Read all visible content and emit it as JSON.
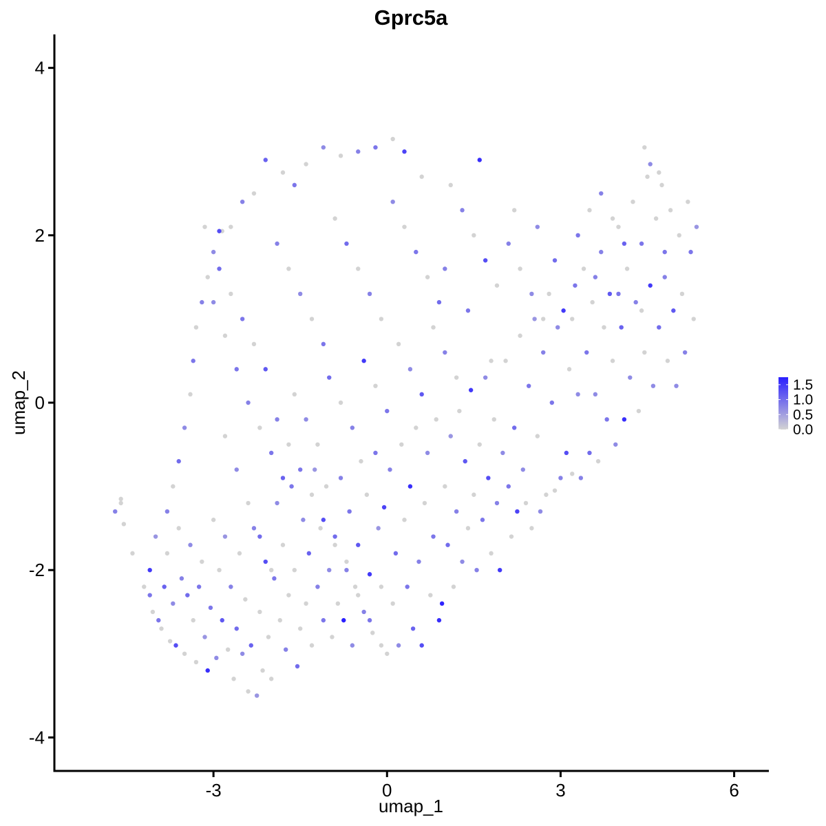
{
  "chart_data": {
    "type": "scatter",
    "title": "Gprc5a",
    "xlabel": "umap_1",
    "ylabel": "umap_2",
    "xlim": [
      -5.75,
      6.6
    ],
    "ylim": [
      -4.4,
      4.4
    ],
    "x_ticks": [
      {
        "value": -3,
        "label": "-3"
      },
      {
        "value": 0,
        "label": "0"
      },
      {
        "value": 3,
        "label": "3"
      },
      {
        "value": 6,
        "label": "6"
      }
    ],
    "y_ticks": [
      {
        "value": -4,
        "label": "-4"
      },
      {
        "value": -2,
        "label": "-2"
      },
      {
        "value": 0,
        "label": "0"
      },
      {
        "value": 2,
        "label": "2"
      },
      {
        "value": 4,
        "label": "4"
      }
    ],
    "grid": false,
    "legend": {
      "placement": "right",
      "type": "colorbar",
      "range": [
        0,
        1.75
      ],
      "ticks": [
        {
          "value": 0.0,
          "label": "0.0"
        },
        {
          "value": 0.5,
          "label": "0.5"
        },
        {
          "value": 1.0,
          "label": "1.0"
        },
        {
          "value": 1.5,
          "label": "1.5"
        }
      ],
      "low_color": "#d3d3d3",
      "high_color": "#2a1fff"
    },
    "colors": {
      "low": "#d3d3d3",
      "high": "#2a1fff",
      "axis": "#000000"
    },
    "points": [
      [
        -4.7,
        -1.3,
        0.8
      ],
      [
        -4.6,
        -1.2,
        0.0
      ],
      [
        -4.55,
        -1.45,
        0.0
      ],
      [
        -4.6,
        -1.15,
        0.0
      ],
      [
        -4.4,
        -1.8,
        0.0
      ],
      [
        -4.2,
        -2.2,
        0.0
      ],
      [
        -4.1,
        -2.3,
        0.9
      ],
      [
        -4.05,
        -2.5,
        0.0
      ],
      [
        -4.1,
        -2.0,
        1.5
      ],
      [
        -4.0,
        -1.6,
        0.6
      ],
      [
        -3.95,
        -2.6,
        0.9
      ],
      [
        -3.9,
        -2.7,
        0.0
      ],
      [
        -3.85,
        -2.2,
        1.1
      ],
      [
        -3.8,
        -1.8,
        0.0
      ],
      [
        -3.75,
        -2.85,
        0.0
      ],
      [
        -3.7,
        -2.4,
        0.7
      ],
      [
        -3.65,
        -2.9,
        1.3
      ],
      [
        -3.6,
        -1.5,
        0.0
      ],
      [
        -3.55,
        -2.1,
        0.8
      ],
      [
        -3.5,
        -3.0,
        0.0
      ],
      [
        -3.45,
        -2.3,
        1.0
      ],
      [
        -3.4,
        -1.7,
        0.7
      ],
      [
        -3.35,
        -2.6,
        0.0
      ],
      [
        -3.3,
        -3.1,
        0.0
      ],
      [
        -3.25,
        -2.2,
        0.9
      ],
      [
        -3.2,
        -1.9,
        0.0
      ],
      [
        -3.15,
        -2.8,
        0.6
      ],
      [
        -3.1,
        -3.2,
        1.6
      ],
      [
        -3.05,
        -2.45,
        0.9
      ],
      [
        -3.0,
        -1.4,
        0.0
      ],
      [
        -2.95,
        -3.05,
        0.7
      ],
      [
        -2.9,
        -2.0,
        0.0
      ],
      [
        -2.85,
        -2.6,
        1.2
      ],
      [
        -2.8,
        -1.6,
        0.6
      ],
      [
        -2.75,
        -2.95,
        0.0
      ],
      [
        -2.7,
        -2.2,
        0.8
      ],
      [
        -2.65,
        -3.3,
        0.0
      ],
      [
        -2.6,
        -2.7,
        1.0
      ],
      [
        -2.55,
        -1.8,
        0.0
      ],
      [
        -2.5,
        -3.0,
        0.7
      ],
      [
        -2.45,
        -2.35,
        0.0
      ],
      [
        -2.4,
        -3.45,
        0.0
      ],
      [
        -2.35,
        -2.9,
        1.1
      ],
      [
        -2.3,
        -1.5,
        0.8
      ],
      [
        -2.25,
        -3.5,
        0.6
      ],
      [
        -2.2,
        -2.5,
        0.0
      ],
      [
        -2.15,
        -3.2,
        0.0
      ],
      [
        -2.1,
        -1.9,
        1.3
      ],
      [
        -2.05,
        -2.8,
        0.0
      ],
      [
        -2.0,
        -3.3,
        0.0
      ],
      [
        -1.95,
        -2.1,
        0.9
      ],
      [
        -1.9,
        -1.2,
        0.7
      ],
      [
        -1.85,
        -2.6,
        0.0
      ],
      [
        -1.8,
        -1.7,
        0.0
      ],
      [
        -1.75,
        -2.95,
        0.8
      ],
      [
        -1.7,
        -2.3,
        0.0
      ],
      [
        -1.65,
        -1.0,
        0.9
      ],
      [
        -1.6,
        -2.0,
        0.0
      ],
      [
        -1.55,
        -3.15,
        1.0
      ],
      [
        -1.5,
        -2.7,
        0.0
      ],
      [
        -1.45,
        -1.4,
        0.7
      ],
      [
        -1.4,
        -2.4,
        0.0
      ],
      [
        -1.35,
        -1.8,
        1.1
      ],
      [
        -1.3,
        -2.9,
        0.0
      ],
      [
        -1.25,
        -0.8,
        0.6
      ],
      [
        -1.2,
        -2.2,
        0.8
      ],
      [
        -1.15,
        -1.5,
        0.0
      ],
      [
        -1.1,
        -2.6,
        0.9
      ],
      [
        -1.05,
        -1.0,
        0.0
      ],
      [
        -1.0,
        -2.0,
        0.7
      ],
      [
        -0.95,
        -2.8,
        0.0
      ],
      [
        -0.9,
        -1.6,
        1.0
      ],
      [
        -0.85,
        -2.4,
        0.0
      ],
      [
        -0.8,
        -0.9,
        0.8
      ],
      [
        -0.75,
        -2.6,
        1.8
      ],
      [
        -0.7,
        -1.9,
        0.0
      ],
      [
        -0.65,
        -1.3,
        0.9
      ],
      [
        -0.6,
        -2.9,
        0.7
      ],
      [
        -0.55,
        -2.2,
        0.0
      ],
      [
        -0.5,
        -1.7,
        1.2
      ],
      [
        -0.45,
        -0.7,
        0.0
      ],
      [
        -0.4,
        -2.5,
        0.8
      ],
      [
        -0.35,
        -1.1,
        0.0
      ],
      [
        -0.3,
        -2.05,
        1.5
      ],
      [
        -0.25,
        -2.75,
        0.0
      ],
      [
        -0.2,
        -0.6,
        0.9
      ],
      [
        -0.15,
        -1.5,
        0.6
      ],
      [
        -0.1,
        -2.2,
        0.0
      ],
      [
        -0.05,
        -1.25,
        1.4
      ],
      [
        0.0,
        -3.0,
        0.0
      ],
      [
        0.05,
        -0.8,
        0.8
      ],
      [
        0.1,
        -2.4,
        0.0
      ],
      [
        0.15,
        -1.8,
        1.0
      ],
      [
        0.2,
        -2.9,
        0.7
      ],
      [
        0.25,
        -0.5,
        0.0
      ],
      [
        0.3,
        -1.4,
        0.0
      ],
      [
        0.35,
        -2.2,
        0.9
      ],
      [
        0.4,
        -1.0,
        1.6
      ],
      [
        0.45,
        -2.7,
        1.1
      ],
      [
        0.5,
        -0.3,
        0.0
      ],
      [
        0.55,
        -1.9,
        0.8
      ],
      [
        0.6,
        -2.9,
        1.3
      ],
      [
        0.65,
        -1.2,
        0.0
      ],
      [
        0.7,
        -0.6,
        0.7
      ],
      [
        0.75,
        -2.3,
        0.0
      ],
      [
        0.8,
        -1.6,
        0.9
      ],
      [
        0.85,
        -0.2,
        0.0
      ],
      [
        0.9,
        -2.6,
        1.6
      ],
      [
        0.95,
        -2.4,
        1.7
      ],
      [
        1.0,
        -1.0,
        0.0
      ],
      [
        1.05,
        -1.7,
        1.0
      ],
      [
        1.1,
        -0.4,
        0.6
      ],
      [
        1.15,
        -2.2,
        0.0
      ],
      [
        1.2,
        -1.3,
        0.8
      ],
      [
        1.25,
        -0.1,
        0.0
      ],
      [
        1.3,
        -1.9,
        0.7
      ],
      [
        1.35,
        -0.7,
        1.2
      ],
      [
        1.4,
        -1.5,
        0.0
      ],
      [
        1.45,
        0.15,
        1.5
      ],
      [
        1.5,
        -1.1,
        0.0
      ],
      [
        1.55,
        -2.0,
        0.8
      ],
      [
        1.6,
        -0.5,
        0.0
      ],
      [
        1.65,
        -1.4,
        0.9
      ],
      [
        1.7,
        0.3,
        0.7
      ],
      [
        1.75,
        -0.9,
        1.3
      ],
      [
        1.8,
        -1.8,
        0.0
      ],
      [
        1.85,
        -0.2,
        0.0
      ],
      [
        1.9,
        -1.2,
        0.8
      ],
      [
        1.95,
        -2.0,
        1.5
      ],
      [
        2.0,
        -0.6,
        0.7
      ],
      [
        2.05,
        0.5,
        0.0
      ],
      [
        2.1,
        -1.0,
        0.9
      ],
      [
        2.15,
        -1.6,
        0.0
      ],
      [
        2.2,
        -0.3,
        1.0
      ],
      [
        2.25,
        -1.3,
        1.4
      ],
      [
        2.3,
        0.8,
        0.0
      ],
      [
        2.35,
        -0.8,
        0.7
      ],
      [
        2.4,
        -1.2,
        0.0
      ],
      [
        2.45,
        0.2,
        0.9
      ],
      [
        2.5,
        -1.5,
        0.0
      ],
      [
        2.55,
        1.0,
        0.6
      ],
      [
        2.6,
        -0.4,
        0.0
      ],
      [
        2.65,
        -1.3,
        0.7
      ],
      [
        2.7,
        0.6,
        0.8
      ],
      [
        2.75,
        -1.1,
        0.0
      ],
      [
        2.8,
        1.3,
        0.0
      ],
      [
        2.85,
        0.0,
        0.9
      ],
      [
        2.9,
        -1.05,
        0.0
      ],
      [
        2.95,
        0.9,
        0.7
      ],
      [
        3.0,
        -0.9,
        0.8
      ],
      [
        3.05,
        1.1,
        1.5
      ],
      [
        3.1,
        -0.6,
        1.3
      ],
      [
        3.15,
        0.4,
        0.0
      ],
      [
        3.2,
        -0.85,
        0.0
      ],
      [
        3.25,
        1.4,
        0.9
      ],
      [
        3.3,
        0.1,
        0.7
      ],
      [
        3.35,
        -0.9,
        0.8
      ],
      [
        3.4,
        1.6,
        0.0
      ],
      [
        3.45,
        0.6,
        0.9
      ],
      [
        3.5,
        -0.6,
        1.0
      ],
      [
        3.55,
        1.2,
        0.0
      ],
      [
        3.6,
        0.1,
        0.7
      ],
      [
        3.65,
        -0.7,
        0.0
      ],
      [
        3.7,
        1.8,
        0.8
      ],
      [
        3.75,
        0.9,
        0.0
      ],
      [
        3.8,
        -0.2,
        0.9
      ],
      [
        3.85,
        1.3,
        1.2
      ],
      [
        3.9,
        0.5,
        0.0
      ],
      [
        3.95,
        -0.5,
        0.7
      ],
      [
        4.0,
        2.1,
        0.0
      ],
      [
        4.05,
        0.9,
        1.1
      ],
      [
        4.1,
        -0.2,
        1.6
      ],
      [
        4.15,
        1.6,
        0.0
      ],
      [
        4.2,
        0.3,
        0.7
      ],
      [
        4.25,
        2.4,
        0.0
      ],
      [
        4.3,
        1.2,
        0.8
      ],
      [
        4.35,
        -0.1,
        0.0
      ],
      [
        4.4,
        1.9,
        0.9
      ],
      [
        4.45,
        0.6,
        0.0
      ],
      [
        4.5,
        2.7,
        0.0
      ],
      [
        4.55,
        1.4,
        1.5
      ],
      [
        4.6,
        0.2,
        0.7
      ],
      [
        4.65,
        2.2,
        0.0
      ],
      [
        4.7,
        0.9,
        1.0
      ],
      [
        4.75,
        2.6,
        0.0
      ],
      [
        4.8,
        1.5,
        0.8
      ],
      [
        4.85,
        0.5,
        0.0
      ],
      [
        4.9,
        2.3,
        0.0
      ],
      [
        4.95,
        1.1,
        1.2
      ],
      [
        5.0,
        0.2,
        0.7
      ],
      [
        5.05,
        2.0,
        0.0
      ],
      [
        5.1,
        1.3,
        0.0
      ],
      [
        5.15,
        0.6,
        0.8
      ],
      [
        5.2,
        2.4,
        0.0
      ],
      [
        5.25,
        1.8,
        0.9
      ],
      [
        5.3,
        1.0,
        0.0
      ],
      [
        5.35,
        2.1,
        0.6
      ],
      [
        4.45,
        3.05,
        0.0
      ],
      [
        4.55,
        2.85,
        0.7
      ],
      [
        4.7,
        2.75,
        0.0
      ],
      [
        1.6,
        2.9,
        1.6
      ],
      [
        0.1,
        3.15,
        0.0
      ],
      [
        0.3,
        3.0,
        1.4
      ],
      [
        -0.2,
        3.05,
        0.9
      ],
      [
        -0.5,
        3.0,
        0.8
      ],
      [
        -0.8,
        2.95,
        0.0
      ],
      [
        -1.1,
        3.05,
        0.7
      ],
      [
        -1.4,
        2.85,
        0.0
      ],
      [
        -1.6,
        2.6,
        0.9
      ],
      [
        -1.8,
        2.75,
        0.0
      ],
      [
        -2.1,
        2.9,
        1.1
      ],
      [
        -2.3,
        2.5,
        0.0
      ],
      [
        -2.5,
        2.4,
        0.8
      ],
      [
        -2.7,
        2.1,
        0.0
      ],
      [
        -2.9,
        2.05,
        1.3
      ],
      [
        -3.0,
        1.8,
        0.7
      ],
      [
        -3.1,
        1.5,
        0.0
      ],
      [
        -3.2,
        1.2,
        0.8
      ],
      [
        -3.3,
        0.9,
        0.0
      ],
      [
        -3.35,
        0.5,
        0.9
      ],
      [
        -3.4,
        0.1,
        0.0
      ],
      [
        -3.5,
        -0.3,
        0.7
      ],
      [
        -3.6,
        -0.7,
        1.0
      ],
      [
        -3.7,
        -1.0,
        0.0
      ],
      [
        -3.8,
        -1.3,
        0.8
      ],
      [
        -2.9,
        1.6,
        1.0
      ],
      [
        -2.7,
        1.3,
        0.0
      ],
      [
        -2.5,
        1.0,
        0.9
      ],
      [
        -2.3,
        0.7,
        0.0
      ],
      [
        -2.1,
        0.4,
        1.2
      ],
      [
        -1.9,
        1.9,
        0.8
      ],
      [
        -1.7,
        1.6,
        0.0
      ],
      [
        -1.5,
        1.3,
        0.7
      ],
      [
        -1.3,
        1.0,
        0.0
      ],
      [
        -1.1,
        0.7,
        0.9
      ],
      [
        -0.9,
        2.2,
        0.0
      ],
      [
        -0.7,
        1.9,
        1.0
      ],
      [
        -0.5,
        1.6,
        0.0
      ],
      [
        -0.3,
        1.3,
        0.8
      ],
      [
        -0.1,
        1.0,
        0.0
      ],
      [
        0.1,
        2.4,
        0.7
      ],
      [
        0.3,
        2.1,
        0.0
      ],
      [
        0.5,
        1.8,
        0.9
      ],
      [
        0.7,
        1.5,
        0.0
      ],
      [
        0.9,
        1.2,
        1.0
      ],
      [
        1.1,
        2.6,
        0.0
      ],
      [
        1.3,
        2.3,
        0.8
      ],
      [
        1.5,
        2.0,
        0.0
      ],
      [
        1.7,
        1.7,
        1.3
      ],
      [
        1.9,
        1.4,
        0.0
      ],
      [
        2.1,
        1.9,
        0.8
      ],
      [
        2.3,
        1.6,
        0.0
      ],
      [
        2.5,
        1.3,
        0.7
      ],
      [
        2.7,
        1.0,
        0.0
      ],
      [
        2.9,
        1.7,
        1.0
      ],
      [
        -2.4,
        0.0,
        0.8
      ],
      [
        -2.2,
        -0.3,
        0.0
      ],
      [
        -2.0,
        -0.6,
        0.9
      ],
      [
        -1.8,
        -0.9,
        1.1
      ],
      [
        -1.6,
        0.1,
        0.0
      ],
      [
        -1.4,
        -0.2,
        0.7
      ],
      [
        -1.2,
        -0.5,
        0.0
      ],
      [
        -1.0,
        0.3,
        1.0
      ],
      [
        -0.8,
        0.0,
        0.0
      ],
      [
        -0.6,
        -0.3,
        0.8
      ],
      [
        -0.4,
        0.5,
        1.5
      ],
      [
        -0.2,
        0.2,
        0.0
      ],
      [
        0.0,
        -0.1,
        0.9
      ],
      [
        0.2,
        0.7,
        0.0
      ],
      [
        0.4,
        0.4,
        0.7
      ],
      [
        0.6,
        0.1,
        1.2
      ],
      [
        0.8,
        0.9,
        0.0
      ],
      [
        1.0,
        0.6,
        0.8
      ],
      [
        1.2,
        0.3,
        0.0
      ],
      [
        1.4,
        1.1,
        0.9
      ],
      [
        -2.8,
        -0.4,
        0.0
      ],
      [
        -2.6,
        -0.8,
        0.7
      ],
      [
        -2.4,
        -1.2,
        0.0
      ],
      [
        -2.2,
        -1.6,
        1.0
      ],
      [
        -2.0,
        -2.0,
        0.0
      ],
      [
        -2.6,
        0.4,
        0.9
      ],
      [
        -2.8,
        0.8,
        0.0
      ],
      [
        -3.0,
        1.2,
        0.7
      ],
      [
        -2.85,
        2.05,
        0.0
      ],
      [
        -3.15,
        2.1,
        0.0
      ],
      [
        -1.9,
        -0.2,
        0.8
      ],
      [
        -1.7,
        -0.5,
        0.0
      ],
      [
        -1.5,
        -0.8,
        0.9
      ],
      [
        -1.3,
        -1.1,
        0.0
      ],
      [
        -1.1,
        -1.4,
        1.3
      ],
      [
        -0.9,
        -1.7,
        0.0
      ],
      [
        -0.7,
        -2.0,
        0.8
      ],
      [
        -0.5,
        -2.3,
        0.0
      ],
      [
        -0.3,
        -2.6,
        0.9
      ],
      [
        -0.1,
        -2.9,
        0.0
      ],
      [
        3.3,
        2.0,
        0.9
      ],
      [
        3.5,
        2.3,
        0.0
      ],
      [
        3.7,
        2.5,
        0.8
      ],
      [
        3.9,
        2.2,
        0.0
      ],
      [
        4.1,
        1.9,
        1.1
      ],
      [
        3.2,
        1.0,
        0.0
      ],
      [
        3.6,
        1.5,
        0.8
      ],
      [
        4.0,
        1.3,
        0.9
      ],
      [
        4.4,
        1.1,
        0.0
      ],
      [
        4.8,
        1.8,
        0.9
      ],
      [
        2.2,
        2.3,
        0.0
      ],
      [
        2.6,
        2.1,
        0.7
      ],
      [
        1.8,
        0.5,
        0.0
      ],
      [
        1.0,
        1.6,
        0.8
      ],
      [
        0.6,
        2.7,
        0.0
      ]
    ]
  }
}
